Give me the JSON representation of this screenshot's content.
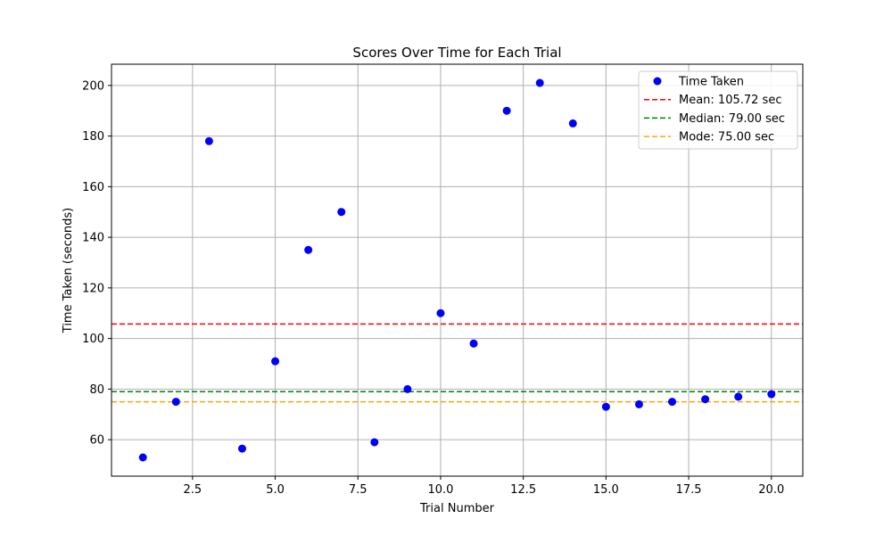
{
  "chart_data": {
    "type": "scatter",
    "title": "Scores Over Time for Each Trial",
    "xlabel": "Trial Number",
    "ylabel": "Time Taken (seconds)",
    "xlim": [
      0.05,
      20.95
    ],
    "ylim": [
      45.6,
      208.4
    ],
    "xticks": [
      2.5,
      5.0,
      7.5,
      10.0,
      12.5,
      15.0,
      17.5,
      20.0
    ],
    "xtick_labels": [
      "2.5",
      "5.0",
      "7.5",
      "10.0",
      "12.5",
      "15.0",
      "17.5",
      "20.0"
    ],
    "yticks": [
      60,
      80,
      100,
      120,
      140,
      160,
      180,
      200
    ],
    "ytick_labels": [
      "60",
      "80",
      "100",
      "120",
      "140",
      "160",
      "180",
      "200"
    ],
    "grid": true,
    "legend_position": "top-right",
    "series": [
      {
        "name": "Time Taken",
        "color": "#0000ff",
        "x": [
          1,
          2,
          3,
          4,
          5,
          6,
          7,
          8,
          9,
          10,
          11,
          12,
          13,
          14,
          15,
          16,
          17,
          18,
          19,
          20
        ],
        "y": [
          53,
          75,
          178,
          56.5,
          91,
          135,
          150,
          59,
          80,
          110,
          98,
          190,
          201,
          185,
          73,
          74,
          75,
          76,
          77,
          78
        ]
      }
    ],
    "reference_lines": [
      {
        "name": "Mean: 105.72 sec",
        "value": 105.72,
        "color": "#ff0000"
      },
      {
        "name": "Median: 79.00 sec",
        "value": 79.0,
        "color": "#008000"
      },
      {
        "name": "Mode: 75.00 sec",
        "value": 75.0,
        "color": "#ffa500"
      }
    ]
  }
}
